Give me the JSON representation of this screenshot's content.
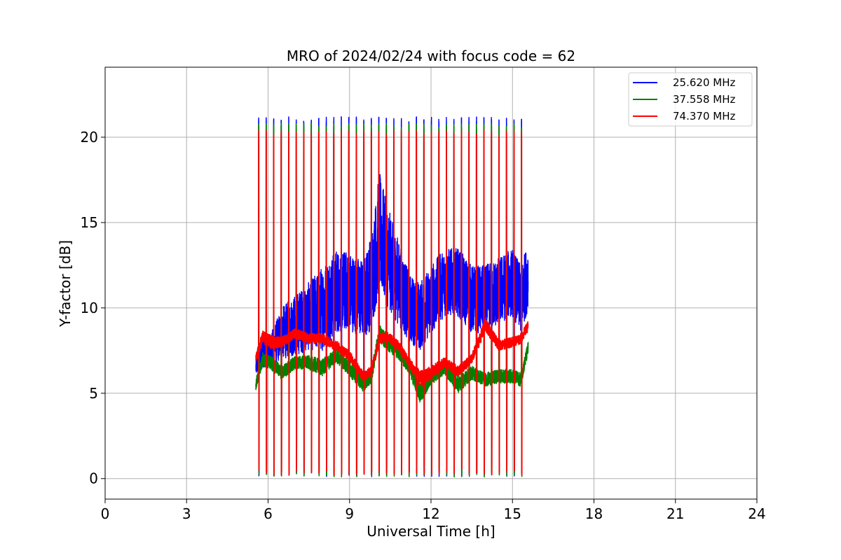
{
  "chart_data": {
    "type": "line",
    "title": "MRO of 2024/02/24 with focus code = 62",
    "xlabel": "Universal Time [h]",
    "ylabel": "Y-factor [dB]",
    "xlim": [
      0,
      24
    ],
    "ylim": [
      -1.2,
      24.1
    ],
    "xticks": [
      0,
      3,
      6,
      9,
      12,
      15,
      18,
      21,
      24
    ],
    "yticks": [
      0,
      5,
      10,
      15,
      20
    ],
    "grid": true,
    "legend_position": "top-right",
    "calibration": {
      "x_start": 5.65,
      "x_end": 15.58,
      "period_h": 0.2765,
      "peak_values": [
        21.0,
        20.6,
        20.2
      ],
      "low_values": [
        0.3,
        0.3,
        0.4
      ]
    },
    "series": [
      {
        "name": "25.620 MHz",
        "color": "#0000ff",
        "x": [
          5.55,
          5.8,
          6.1,
          6.5,
          7.0,
          7.5,
          8.0,
          8.5,
          9.0,
          9.5,
          9.8,
          10.1,
          10.4,
          10.8,
          11.2,
          11.6,
          12.0,
          12.5,
          13.0,
          13.5,
          14.0,
          14.5,
          15.0,
          15.3,
          15.6
        ],
        "base": [
          6.5,
          7.5,
          7.5,
          8.5,
          9.0,
          9.5,
          10.0,
          11.0,
          11.0,
          10.5,
          11.5,
          14.5,
          13.0,
          11.5,
          10.0,
          9.5,
          10.5,
          11.5,
          11.5,
          10.5,
          10.5,
          11.0,
          11.5,
          10.5,
          12.0
        ],
        "amp": [
          0.5,
          1.0,
          1.0,
          1.5,
          1.8,
          2.0,
          2.5,
          2.5,
          2.3,
          2.3,
          2.8,
          3.5,
          3.0,
          2.5,
          2.0,
          2.0,
          2.0,
          2.0,
          2.0,
          2.0,
          2.0,
          2.0,
          2.0,
          2.0,
          2.0
        ]
      },
      {
        "name": "37.558 MHz",
        "color": "#008000",
        "x": [
          5.55,
          5.8,
          6.1,
          6.5,
          7.0,
          7.5,
          8.0,
          8.5,
          9.0,
          9.5,
          9.8,
          10.1,
          10.4,
          10.8,
          11.2,
          11.6,
          12.0,
          12.5,
          13.0,
          13.5,
          14.0,
          14.5,
          15.0,
          15.3,
          15.6
        ],
        "base": [
          5.5,
          7.0,
          6.8,
          6.2,
          6.8,
          6.8,
          6.5,
          7.2,
          6.5,
          5.5,
          6.0,
          8.5,
          8.0,
          7.5,
          6.5,
          5.0,
          6.0,
          6.5,
          5.5,
          6.2,
          5.8,
          6.0,
          6.0,
          5.8,
          7.8
        ],
        "amp": [
          0.3,
          0.4,
          0.4,
          0.4,
          0.4,
          0.4,
          0.5,
          0.4,
          0.5,
          0.4,
          0.4,
          0.5,
          0.5,
          0.5,
          0.4,
          0.6,
          0.5,
          0.4,
          0.5,
          0.4,
          0.4,
          0.4,
          0.4,
          0.4,
          0.4
        ]
      },
      {
        "name": "74.370 MHz",
        "color": "#ff0000",
        "x": [
          5.55,
          5.8,
          6.1,
          6.5,
          7.0,
          7.5,
          8.0,
          8.5,
          9.0,
          9.5,
          9.8,
          10.1,
          10.4,
          10.8,
          11.2,
          11.6,
          12.0,
          12.5,
          13.0,
          13.5,
          14.0,
          14.5,
          15.0,
          15.3,
          15.6
        ],
        "base": [
          7.0,
          8.3,
          8.0,
          8.0,
          8.5,
          8.2,
          8.2,
          7.8,
          7.2,
          6.0,
          6.3,
          8.2,
          8.3,
          7.8,
          6.8,
          5.8,
          6.2,
          6.8,
          6.3,
          7.0,
          9.0,
          7.8,
          8.0,
          8.2,
          9.0
        ],
        "amp": [
          0.3,
          0.4,
          0.4,
          0.3,
          0.3,
          0.3,
          0.3,
          0.3,
          0.3,
          0.3,
          0.3,
          0.3,
          0.3,
          0.3,
          0.3,
          0.5,
          0.4,
          0.3,
          0.3,
          0.3,
          0.4,
          0.3,
          0.3,
          0.3,
          0.3
        ]
      }
    ]
  }
}
